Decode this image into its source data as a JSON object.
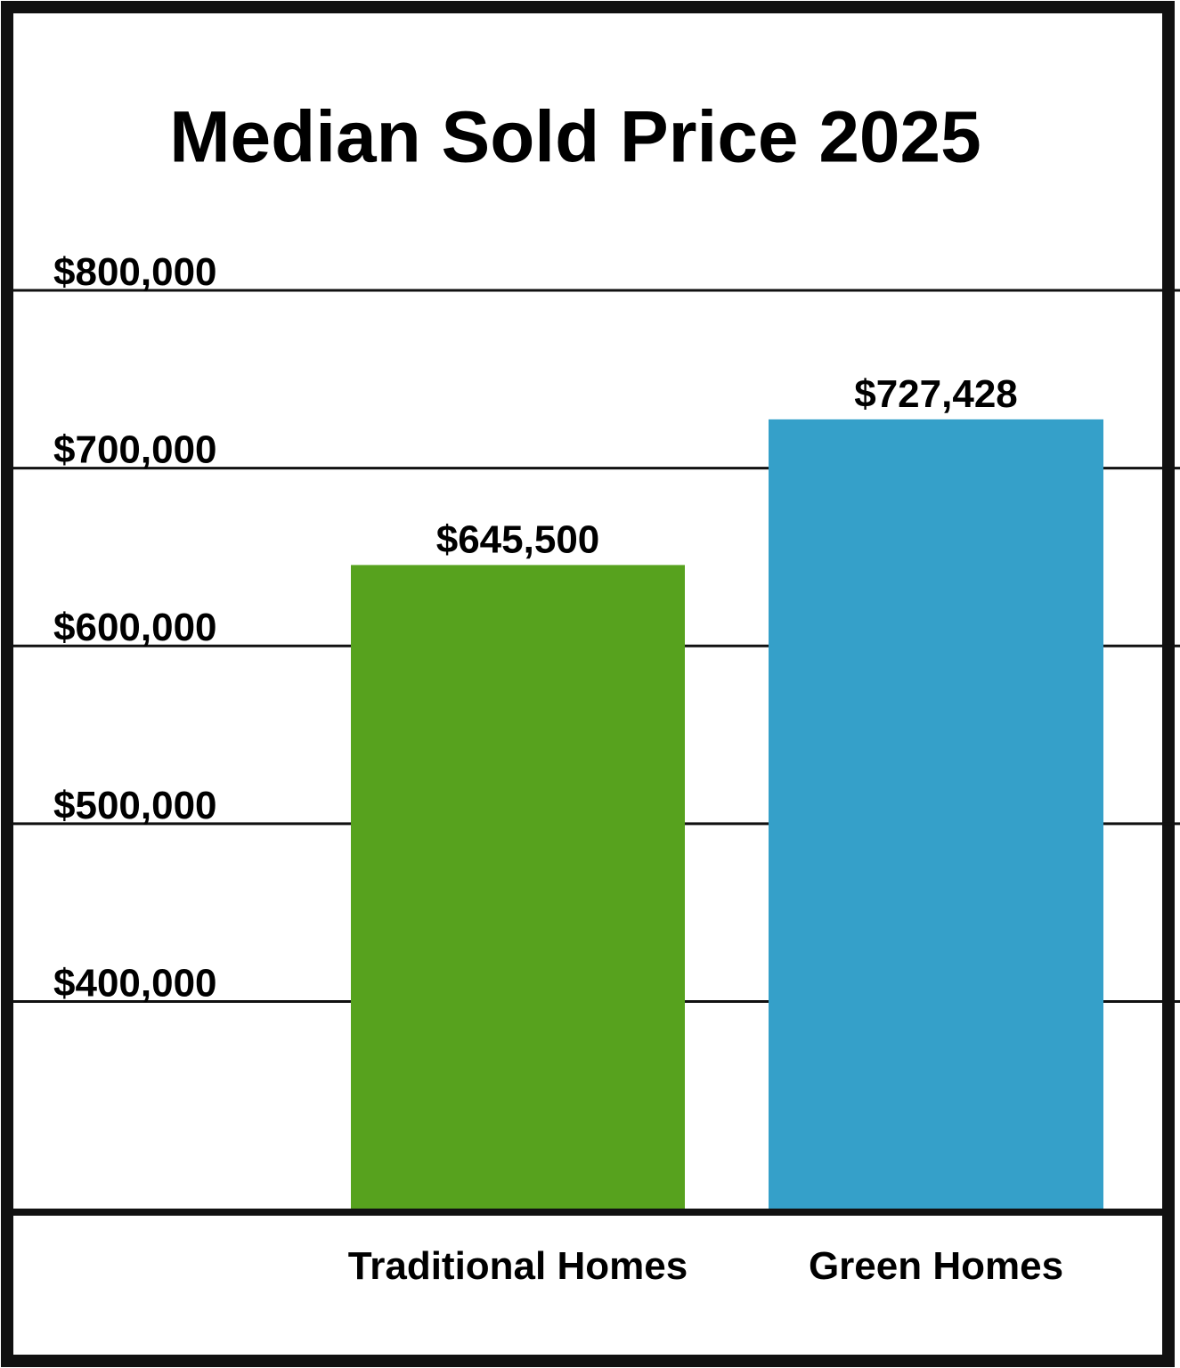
{
  "chart_data": {
    "type": "bar",
    "title": "Median Sold Price 2025",
    "categories": [
      "Traditional Homes",
      "Green Homes"
    ],
    "values": [
      645500,
      727428
    ],
    "value_labels": [
      "$645,500",
      "$727,428"
    ],
    "colors": [
      "#57a21e",
      "#35a0c9"
    ],
    "ylim": [
      282000,
      800000
    ],
    "yticks": [
      {
        "value": 400000,
        "label": "$400,000"
      },
      {
        "value": 500000,
        "label": "$500,000"
      },
      {
        "value": 600000,
        "label": "$600,000"
      },
      {
        "value": 700000,
        "label": "$700,000"
      },
      {
        "value": 800000,
        "label": "$800,000"
      }
    ],
    "grid": true
  }
}
